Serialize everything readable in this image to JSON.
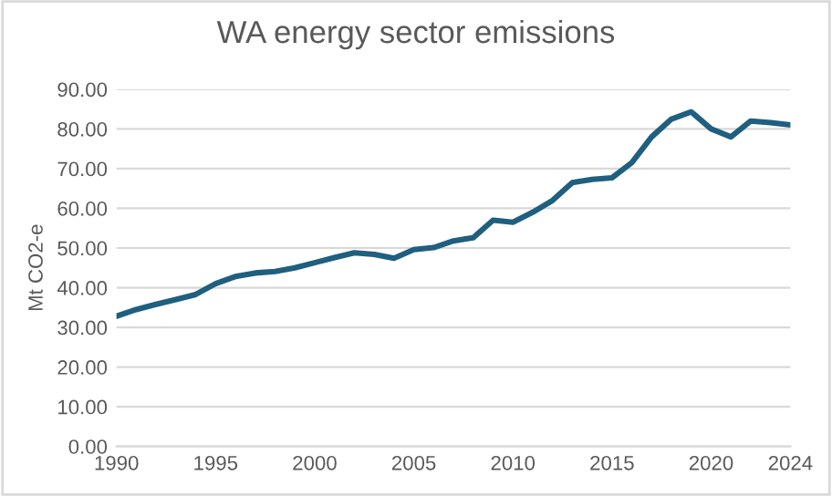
{
  "chart_data": {
    "type": "line",
    "title": "WA energy sector emissions",
    "ylabel": "Mt CO2-e",
    "x": [
      1990,
      1991,
      1992,
      1993,
      1994,
      1995,
      1996,
      1997,
      1998,
      1999,
      2000,
      2001,
      2002,
      2003,
      2004,
      2005,
      2006,
      2007,
      2008,
      2009,
      2010,
      2011,
      2012,
      2013,
      2014,
      2015,
      2016,
      2017,
      2018,
      2019,
      2020,
      2021,
      2022,
      2023,
      2024
    ],
    "series": [
      {
        "color": "#1f5f7f",
        "values": [
          32.8,
          34.5,
          35.8,
          37.0,
          38.3,
          41.0,
          42.8,
          43.7,
          44.1,
          45.0,
          46.3,
          47.6,
          48.8,
          48.4,
          47.4,
          49.6,
          50.1,
          51.8,
          52.6,
          57.0,
          56.5,
          59.0,
          62.0,
          66.5,
          67.3,
          67.7,
          71.5,
          78.0,
          82.5,
          84.3,
          80.0,
          78.0,
          82.0,
          81.6,
          81.0
        ]
      }
    ],
    "xlim": [
      1990,
      2024
    ],
    "xticks": [
      1990,
      1995,
      2000,
      2005,
      2010,
      2015,
      2020,
      2024
    ],
    "ylim": [
      0,
      90
    ],
    "yticks": [
      {
        "value": 0,
        "label": "0.00"
      },
      {
        "value": 10,
        "label": "10.00"
      },
      {
        "value": 20,
        "label": "20.00"
      },
      {
        "value": 30,
        "label": "30.00"
      },
      {
        "value": 40,
        "label": "40.00"
      },
      {
        "value": 50,
        "label": "50.00"
      },
      {
        "value": 60,
        "label": "60.00"
      },
      {
        "value": 70,
        "label": "70.00"
      },
      {
        "value": 80,
        "label": "80.00"
      },
      {
        "value": 90,
        "label": "90.00"
      }
    ],
    "grid": "y",
    "marker": "none",
    "line_style": "solid"
  }
}
